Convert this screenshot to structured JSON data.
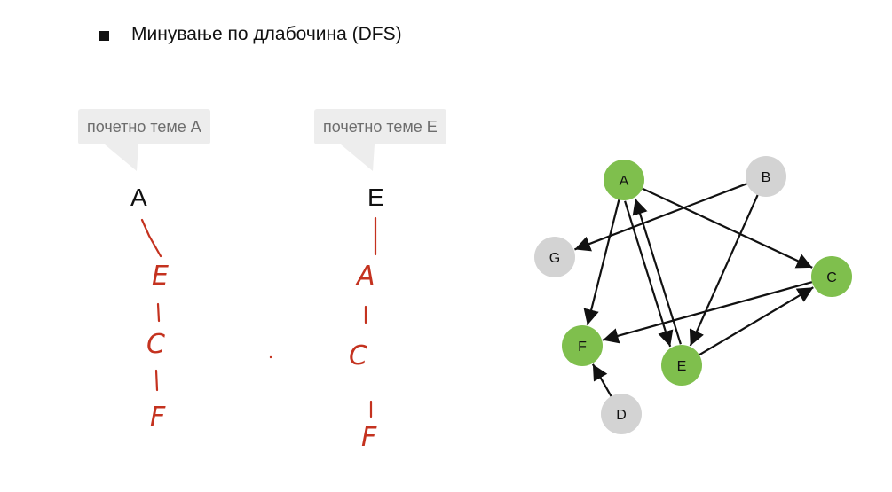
{
  "slide": {
    "heading": "Минување по длабочина (DFS)"
  },
  "traversals": [
    {
      "callout": "почетно теме A",
      "start": "A",
      "sequence": [
        "E",
        "C",
        "F"
      ]
    },
    {
      "callout": "почетно теме E",
      "start": "E",
      "sequence": [
        "A",
        "C",
        "F"
      ]
    }
  ],
  "graph": {
    "nodes": [
      {
        "id": "A",
        "label": "A",
        "color": "#7fbf4d"
      },
      {
        "id": "B",
        "label": "B",
        "color": "#d3d3d3"
      },
      {
        "id": "G",
        "label": "G",
        "color": "#d3d3d3"
      },
      {
        "id": "C",
        "label": "C",
        "color": "#7fbf4d"
      },
      {
        "id": "F",
        "label": "F",
        "color": "#7fbf4d"
      },
      {
        "id": "E",
        "label": "E",
        "color": "#7fbf4d"
      },
      {
        "id": "D",
        "label": "D",
        "color": "#d3d3d3"
      }
    ],
    "edges": [
      {
        "from": "A",
        "to": "C"
      },
      {
        "from": "A",
        "to": "F"
      },
      {
        "from": "A",
        "to": "E"
      },
      {
        "from": "E",
        "to": "A"
      },
      {
        "from": "B",
        "to": "G"
      },
      {
        "from": "B",
        "to": "E"
      },
      {
        "from": "C",
        "to": "F"
      },
      {
        "from": "E",
        "to": "C"
      },
      {
        "from": "D",
        "to": "F"
      }
    ]
  }
}
